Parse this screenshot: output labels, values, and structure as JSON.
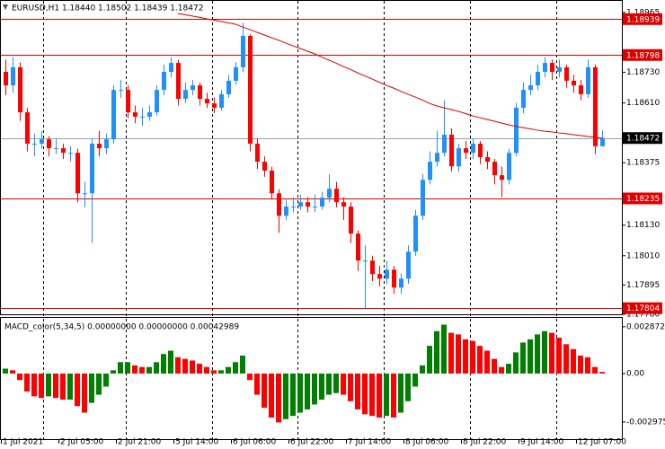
{
  "chart_data": [
    {
      "type": "candlestick",
      "title": "EURUSD,H1  1.18440 1.18502 1.18439 1.18472",
      "categories": [
        "1 Jul 2021",
        null,
        null,
        null,
        null,
        null,
        null,
        null,
        "2 Jul 05:00",
        null,
        null,
        null,
        null,
        null,
        null,
        null,
        "2 Jul 21:00",
        null,
        null,
        null,
        null,
        null,
        null,
        null,
        "5 Jul 14:00",
        null,
        null,
        null,
        null,
        null,
        null,
        null,
        "6 Jul 06:00",
        null,
        null,
        null,
        null,
        null,
        null,
        null,
        "6 Jul 22:00",
        null,
        null,
        null,
        null,
        null,
        null,
        null,
        "7 Jul 14:00",
        null,
        null,
        null,
        null,
        null,
        null,
        null,
        "8 Jul 06:00",
        null,
        null,
        null,
        null,
        null,
        null,
        null,
        "8 Jul 22:00",
        null,
        null,
        null,
        null,
        null,
        null,
        null,
        "9 Jul 14:00",
        null,
        null,
        null,
        null,
        null,
        null,
        null,
        "12 Jul 07:00",
        null,
        null,
        null
      ],
      "candles": [
        [
          1.18732,
          1.1878,
          1.1864,
          1.18679
        ],
        [
          1.18679,
          1.1879,
          1.1865,
          1.1875
        ],
        [
          1.1875,
          1.1877,
          1.1854,
          1.18573
        ],
        [
          1.18573,
          1.1859,
          1.1842,
          1.1845
        ],
        [
          1.1845,
          1.1849,
          1.184,
          1.1845
        ],
        [
          1.1845,
          1.185,
          1.1843,
          1.18467
        ],
        [
          1.18467,
          1.1848,
          1.184,
          1.18432
        ],
        [
          1.18432,
          1.1847,
          1.1841,
          1.18432
        ],
        [
          1.18432,
          1.1845,
          1.1839,
          1.18414
        ],
        [
          1.18414,
          1.1844,
          1.1838,
          1.18414
        ],
        [
          1.18414,
          1.1843,
          1.1822,
          1.18255
        ],
        [
          1.18255,
          1.183,
          1.182,
          1.18255
        ],
        [
          1.18255,
          1.1847,
          1.1806,
          1.1845
        ],
        [
          1.1845,
          1.185,
          1.184,
          1.18432
        ],
        [
          1.18432,
          1.1849,
          1.1841,
          1.18467
        ],
        [
          1.18467,
          1.1868,
          1.1845,
          1.18661
        ],
        [
          1.18661,
          1.187,
          1.1863,
          1.18661
        ],
        [
          1.18661,
          1.1868,
          1.1855,
          1.18573
        ],
        [
          1.18573,
          1.186,
          1.1853,
          1.18556
        ],
        [
          1.18556,
          1.1859,
          1.1852,
          1.18556
        ],
        [
          1.18556,
          1.186,
          1.1854,
          1.18573
        ],
        [
          1.18573,
          1.1868,
          1.1856,
          1.18661
        ],
        [
          1.18661,
          1.1876,
          1.1864,
          1.18732
        ],
        [
          1.18732,
          1.1879,
          1.1871,
          1.18767
        ],
        [
          1.18767,
          1.1878,
          1.186,
          1.18626
        ],
        [
          1.18626,
          1.1869,
          1.1861,
          1.18661
        ],
        [
          1.18661,
          1.187,
          1.1864,
          1.18679
        ],
        [
          1.18679,
          1.1869,
          1.186,
          1.18626
        ],
        [
          1.18626,
          1.1865,
          1.1859,
          1.18608
        ],
        [
          1.18608,
          1.1863,
          1.1857,
          1.18591
        ],
        [
          1.18591,
          1.1866,
          1.1858,
          1.18644
        ],
        [
          1.18644,
          1.1872,
          1.1863,
          1.18697
        ],
        [
          1.18697,
          1.1877,
          1.1868,
          1.1875
        ],
        [
          1.1875,
          1.18925,
          1.1873,
          1.18873
        ],
        [
          1.18873,
          1.1888,
          1.1842,
          1.1845
        ],
        [
          1.1845,
          1.1847,
          1.1835,
          1.18379
        ],
        [
          1.18379,
          1.184,
          1.1832,
          1.18344
        ],
        [
          1.18344,
          1.1836,
          1.1823,
          1.18255
        ],
        [
          1.18255,
          1.1827,
          1.181,
          1.18167
        ],
        [
          1.18167,
          1.1823,
          1.1815,
          1.18203
        ],
        [
          1.18203,
          1.1824,
          1.1818,
          1.18203
        ],
        [
          1.18203,
          1.1825,
          1.1819,
          1.1822
        ],
        [
          1.1822,
          1.1824,
          1.1818,
          1.18203
        ],
        [
          1.18203,
          1.1825,
          1.1818,
          1.18203
        ],
        [
          1.18203,
          1.1826,
          1.1819,
          1.18238
        ],
        [
          1.18238,
          1.1833,
          1.1822,
          1.18273
        ],
        [
          1.18273,
          1.183,
          1.182,
          1.1822
        ],
        [
          1.1822,
          1.1824,
          1.1815,
          1.18203
        ],
        [
          1.18203,
          1.1822,
          1.1806,
          1.18097
        ],
        [
          1.18097,
          1.1811,
          1.1795,
          1.17991
        ],
        [
          1.17991,
          1.1805,
          1.17804,
          1.17991
        ],
        [
          1.17991,
          1.1801,
          1.1791,
          1.17938
        ],
        [
          1.17938,
          1.1797,
          1.1789,
          1.1792
        ],
        [
          1.1792,
          1.1799,
          1.179,
          1.17955
        ],
        [
          1.17955,
          1.1797,
          1.1786,
          1.17885
        ],
        [
          1.17885,
          1.1794,
          1.1786,
          1.1792
        ],
        [
          1.1792,
          1.1805,
          1.179,
          1.18026
        ],
        [
          1.18026,
          1.1819,
          1.1801,
          1.18167
        ],
        [
          1.18167,
          1.1833,
          1.1815,
          1.18308
        ],
        [
          1.18308,
          1.1842,
          1.1829,
          1.18379
        ],
        [
          1.18379,
          1.185,
          1.1836,
          1.18414
        ],
        [
          1.18414,
          1.1862,
          1.184,
          1.18485
        ],
        [
          1.18485,
          1.1851,
          1.1834,
          1.18361
        ],
        [
          1.18361,
          1.1845,
          1.1834,
          1.18432
        ],
        [
          1.18432,
          1.1846,
          1.1839,
          1.18414
        ],
        [
          1.18414,
          1.1847,
          1.1839,
          1.1845
        ],
        [
          1.1845,
          1.1846,
          1.1837,
          1.18397
        ],
        [
          1.18397,
          1.1842,
          1.1835,
          1.18379
        ],
        [
          1.18379,
          1.1839,
          1.1829,
          1.18326
        ],
        [
          1.18326,
          1.1836,
          1.1824,
          1.18308
        ],
        [
          1.18308,
          1.1843,
          1.1829,
          1.18414
        ],
        [
          1.18414,
          1.1861,
          1.184,
          1.18591
        ],
        [
          1.18591,
          1.1869,
          1.1857,
          1.18661
        ],
        [
          1.18661,
          1.1872,
          1.1864,
          1.18679
        ],
        [
          1.18679,
          1.1876,
          1.1866,
          1.18732
        ],
        [
          1.18732,
          1.1879,
          1.1871,
          1.18767
        ],
        [
          1.18767,
          1.1878,
          1.187,
          1.18732
        ],
        [
          1.18732,
          1.1878,
          1.1871,
          1.1875
        ],
        [
          1.1875,
          1.1876,
          1.1867,
          1.18697
        ],
        [
          1.18697,
          1.1872,
          1.1865,
          1.18679
        ],
        [
          1.18679,
          1.187,
          1.1862,
          1.18644
        ],
        [
          1.18644,
          1.1878,
          1.1863,
          1.1875
        ],
        [
          1.1875,
          1.1876,
          1.1841,
          1.1844
        ],
        [
          1.1844,
          1.18502,
          1.18439,
          1.18472
        ]
      ],
      "up_color": "#1e90ff",
      "down_color": "#ff0000",
      "ma": {
        "color": "#d40000",
        "values": [
          null,
          null,
          null,
          null,
          null,
          null,
          null,
          null,
          null,
          null,
          null,
          null,
          null,
          null,
          null,
          null,
          null,
          null,
          null,
          null,
          null,
          null,
          null,
          null,
          1.18961,
          1.18956,
          1.18951,
          1.18946,
          1.1894,
          1.18935,
          1.1893,
          1.18924,
          1.18919,
          1.18908,
          1.18898,
          1.18887,
          1.18877,
          1.18866,
          1.18856,
          1.18845,
          1.18834,
          1.18824,
          1.18813,
          1.18803,
          1.1879,
          1.18778,
          1.18766,
          1.18753,
          1.18741,
          1.18728,
          1.18716,
          1.18704,
          1.18691,
          1.18679,
          1.18668,
          1.18656,
          1.18644,
          1.18633,
          1.18621,
          1.18608,
          1.18598,
          1.18591,
          1.18584,
          1.18577,
          1.18568,
          1.18559,
          1.18552,
          1.18545,
          1.18538,
          1.18531,
          1.18524,
          1.18518,
          1.18513,
          1.18508,
          1.18503,
          1.18499,
          1.18496,
          1.18492,
          1.18489,
          1.18485,
          1.18482,
          1.18478,
          1.18475,
          1.18471
        ]
      },
      "ylim": [
        1.1778,
        1.19007
      ],
      "yticks": [
        1.18965,
        {
          "value": 1.1873,
          "label": "1.18730"
        },
        {
          "value": 1.1861,
          "label": "1.18610"
        },
        1.18375,
        {
          "value": 1.1813,
          "label": "1.18130"
        },
        {
          "value": 1.1801,
          "label": "1.18010"
        },
        1.17895,
        {
          "value": 1.1778,
          "label": "1.17780"
        }
      ],
      "levels": [
        1.18939,
        1.18798,
        1.18235,
        1.17804
      ],
      "level_color": "#e00000",
      "price_line": {
        "value": 1.18472,
        "color": "#8fa4bb"
      }
    },
    {
      "type": "bar",
      "title": "MACD_color(5,34,5) 0.00000000 0.00000000 0.00042989",
      "values": [
        0.0003,
        0.0002,
        -0.0004,
        -0.0011,
        -0.0014,
        -0.0015,
        -0.0014,
        -0.0015,
        -0.0016,
        -0.0016,
        -0.002,
        -0.0024,
        -0.0018,
        -0.0013,
        -0.0008,
        0.0002,
        0.0007,
        0.0007,
        0.0005,
        0.0004,
        0.0004,
        0.0007,
        0.0012,
        0.0014,
        0.001,
        0.0009,
        0.0008,
        0.0006,
        0.0004,
        0.0002,
        0.0002,
        0.0004,
        0.0007,
        0.0011,
        -0.0004,
        -0.0013,
        -0.0021,
        -0.0027,
        -0.003,
        -0.0028,
        -0.0026,
        -0.0024,
        -0.0022,
        -0.0019,
        -0.0016,
        -0.0013,
        -0.0012,
        -0.0013,
        -0.0017,
        -0.0022,
        -0.0025,
        -0.0026,
        -0.0027,
        -0.0026,
        -0.0027,
        -0.0024,
        -0.0017,
        -0.0008,
        0.0005,
        0.0017,
        0.0026,
        0.003,
        0.0025,
        0.0024,
        0.0021,
        0.002,
        0.0017,
        0.0014,
        0.0009,
        0.0004,
        0.0006,
        0.0013,
        0.0019,
        0.0021,
        0.0024,
        0.0026,
        0.0025,
        0.0022,
        0.0018,
        0.0015,
        0.0011,
        0.001,
        0.0004,
        0.0001
      ],
      "up_color": "#008000",
      "down_color": "#ff0000",
      "ylim": [
        -0.00408,
        0.00336
      ],
      "yticks": [
        0.0028725,
        {
          "value": 0,
          "label": "0.00"
        },
        -0.002975
      ]
    }
  ]
}
